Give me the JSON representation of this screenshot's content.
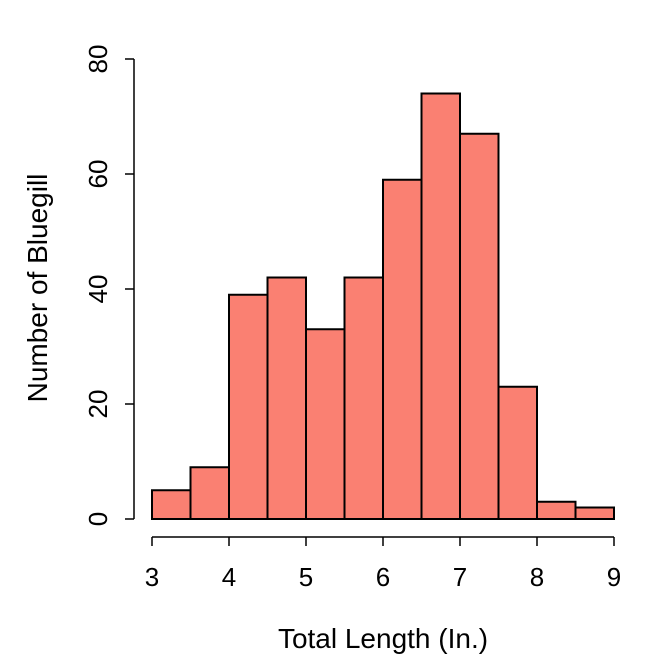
{
  "chart_data": {
    "type": "bar",
    "variant": "histogram",
    "title": "",
    "xlabel": "Total Length (In.)",
    "ylabel": "Number of Bluegill",
    "bin_edges": [
      3,
      3.5,
      4,
      4.5,
      5,
      5.5,
      6,
      6.5,
      7,
      7.5,
      8,
      8.5,
      9
    ],
    "values": [
      5,
      9,
      39,
      42,
      33,
      42,
      59,
      74,
      67,
      23,
      3,
      2
    ],
    "xlim": [
      3,
      9
    ],
    "ylim": [
      0,
      80
    ],
    "x_ticks": [
      3,
      4,
      5,
      6,
      7,
      8,
      9
    ],
    "y_ticks": [
      0,
      20,
      40,
      60,
      80
    ],
    "grid": false,
    "bar_color": "#FA8072",
    "edge_color": "#000000"
  }
}
